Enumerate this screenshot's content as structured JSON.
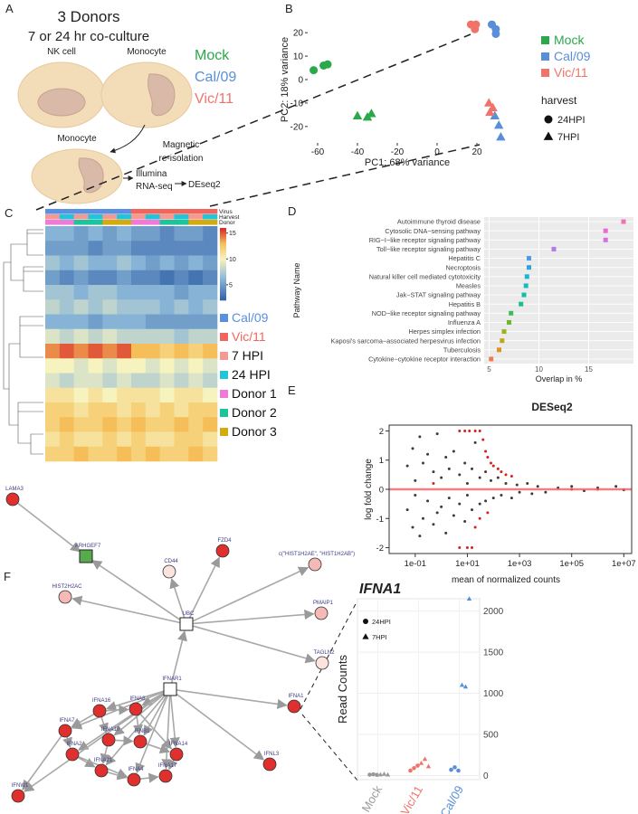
{
  "panel_labels": [
    "A",
    "B",
    "C",
    "D",
    "E",
    "F"
  ],
  "panel_a": {
    "title": "3 Donors",
    "subtitle": "7 or 24 hr co-culture",
    "cells": [
      "NK cell",
      "Monocyte",
      "Monocyte"
    ],
    "steps": [
      "Magnetic",
      "re-isolation",
      "Illumina",
      "RNA-seq",
      "DEseq2"
    ]
  },
  "chart_data": [
    {
      "type": "scatter",
      "xlabel": "PC1: 68% variance",
      "ylabel": "PC2: 18% variance",
      "xlim": [
        -65,
        35
      ],
      "ylim": [
        -27,
        27
      ],
      "xticks": [
        -60,
        -40,
        -20,
        0,
        20
      ],
      "yticks": [
        -20,
        -10,
        0,
        10,
        20
      ],
      "legend_title": "harvest",
      "harvest_levels": [
        "24HPI",
        "7HPI"
      ],
      "series": [
        {
          "name": "Mock",
          "color": "#2aa84a",
          "x": [
            -62,
            -57,
            -55,
            -40,
            -35,
            -33
          ],
          "y": [
            4,
            6,
            6.5,
            -15.5,
            -16,
            -14.5
          ],
          "harvest": [
            0,
            0,
            0,
            1,
            1,
            1
          ]
        },
        {
          "name": "Cal/09",
          "color": "#5a8fd8",
          "x": [
            27.5,
            29.5,
            29.5,
            29,
            31,
            32
          ],
          "y": [
            23.5,
            21.5,
            19.5,
            -15.5,
            -19.5,
            -24.5
          ],
          "harvest": [
            0,
            0,
            0,
            1,
            1,
            1
          ]
        },
        {
          "name": "Vic/11",
          "color": "#f0736a",
          "x": [
            17,
            19.5,
            19,
            26,
            28,
            26.5
          ],
          "y": [
            23.5,
            23.5,
            21.5,
            -10,
            -12,
            -14
          ],
          "harvest": [
            0,
            0,
            0,
            1,
            1,
            1
          ]
        }
      ]
    },
    {
      "type": "heatmap",
      "annotation_labels": [
        "Virus",
        "Harvest",
        "Donor"
      ],
      "annotations": [
        [
          0,
          0,
          0,
          0,
          0,
          0,
          1,
          1,
          1,
          1,
          1,
          1
        ],
        [
          2,
          3,
          2,
          3,
          2,
          3,
          2,
          3,
          2,
          3,
          2,
          3
        ],
        [
          4,
          4,
          5,
          5,
          6,
          6,
          4,
          4,
          5,
          5,
          6,
          6
        ]
      ],
      "legend": [
        {
          "label": "Cal/09",
          "color": "#5b8fe0",
          "text_color": "#5b8fe0"
        },
        {
          "label": "Vic/11",
          "color": "#f0665d",
          "text_color": "#f0665d"
        },
        {
          "label": "7 HPI",
          "color": "#f59a93"
        },
        {
          "label": "24 HPI",
          "color": "#22c4d8"
        },
        {
          "label": "Donor 1",
          "color": "#f07ad8"
        },
        {
          "label": "Donor 2",
          "color": "#1bc49a"
        },
        {
          "label": "Donor 3",
          "color": "#d4aa0c"
        }
      ],
      "clim": [
        2,
        16
      ],
      "cticks": [
        5,
        10,
        15
      ],
      "values": [
        [
          6,
          6,
          5,
          6,
          5,
          6,
          5,
          5,
          4,
          5,
          5,
          4
        ],
        [
          5,
          5,
          5,
          4,
          5,
          5,
          4,
          4,
          4,
          4,
          4,
          4
        ],
        [
          7,
          6,
          7,
          6,
          6,
          7,
          6,
          5,
          6,
          5,
          6,
          5
        ],
        [
          5,
          4,
          5,
          4,
          4,
          5,
          4,
          4,
          3,
          4,
          3,
          4
        ],
        [
          7,
          7,
          6,
          7,
          7,
          6,
          6,
          6,
          6,
          5,
          6,
          6
        ],
        [
          8,
          7,
          8,
          7,
          8,
          7,
          7,
          7,
          6,
          7,
          6,
          7
        ],
        [
          6,
          6,
          6,
          5,
          6,
          6,
          6,
          5,
          5,
          5,
          5,
          5
        ],
        [
          9,
          8,
          9,
          8,
          9,
          8,
          8,
          8,
          8,
          7,
          8,
          8
        ],
        [
          14,
          15,
          14,
          15,
          14,
          15,
          13,
          13,
          12,
          13,
          12,
          13
        ],
        [
          10,
          10,
          9,
          10,
          9,
          10,
          10,
          9,
          10,
          9,
          10,
          9
        ],
        [
          9,
          8,
          9,
          9,
          8,
          9,
          8,
          8,
          9,
          8,
          9,
          8
        ],
        [
          11,
          11,
          10,
          11,
          10,
          11,
          11,
          11,
          10,
          11,
          11,
          10
        ],
        [
          12,
          12,
          11,
          12,
          12,
          11,
          12,
          11,
          12,
          11,
          12,
          12
        ],
        [
          12,
          13,
          12,
          12,
          13,
          12,
          13,
          12,
          12,
          13,
          12,
          13
        ],
        [
          11,
          12,
          11,
          11,
          12,
          11,
          12,
          11,
          11,
          12,
          12,
          11
        ],
        [
          12,
          12,
          13,
          12,
          12,
          13,
          12,
          13,
          12,
          12,
          13,
          12
        ]
      ]
    },
    {
      "type": "dot",
      "xlabel": "Overlap in %",
      "ylabel": "Pathway Name",
      "xlim": [
        4.5,
        19.5
      ],
      "xticks": [
        5,
        10,
        15
      ],
      "grid": true,
      "categories": [
        "Autoimmune thyroid disease",
        "Cytosolic DNA−sensing pathway",
        "RIG−I−like receptor signaling pathway",
        "Toll−like receptor signaling pathway",
        "Hepatitis C",
        "Necroptosis",
        "Natural killer cell mediated cytotoxicity",
        "Measles",
        "Jak−STAT signaling pathway",
        "Hepatitis B",
        "NOD−like receptor signaling pathway",
        "Influenza A",
        "Herpes simplex infection",
        "Kaposi's sarcoma−associated herpesvirus infection",
        "Tuberculosis",
        "Cytokine−cytokine receptor interaction"
      ],
      "values": [
        18.5,
        16.7,
        16.7,
        11.5,
        9,
        9,
        8.8,
        8.7,
        8.5,
        8.2,
        7.2,
        7,
        6.5,
        6.3,
        6,
        5.2
      ],
      "colors": [
        "#f26fb8",
        "#e66bd6",
        "#d36ee6",
        "#b57ae8",
        "#4f9be6",
        "#2aa6e0",
        "#1db3d4",
        "#12bcc0",
        "#14bea4",
        "#1cbf86",
        "#3bbd57",
        "#6cb92e",
        "#9bb21a",
        "#c0a718",
        "#de951c",
        "#f27a4f"
      ]
    },
    {
      "type": "scatter",
      "title": "DESeq2",
      "xlabel": "mean of normalized counts",
      "ylabel": "log fold change",
      "log_x": true,
      "xlim": [
        0.01,
        20000000
      ],
      "ylim": [
        -2.2,
        2.2
      ],
      "xticks": [
        {
          "value": 0.1,
          "label": "1e-01"
        },
        {
          "value": 10,
          "label": "1e+01"
        },
        {
          "value": 1000,
          "label": "1e+03"
        },
        {
          "value": 100000,
          "label": "1e+05"
        },
        {
          "value": 10000000,
          "label": "1e+07"
        }
      ],
      "yticks": [
        -2,
        -1,
        0,
        1,
        2
      ],
      "hline": 0,
      "hline_color": "#f06060",
      "series": [
        {
          "color": "#3c3c3c",
          "x": [
            0.05,
            0.05,
            0.08,
            0.08,
            0.1,
            0.1,
            0.15,
            0.15,
            0.2,
            0.2,
            0.3,
            0.3,
            0.5,
            0.5,
            0.7,
            0.7,
            1,
            1,
            1.5,
            1.5,
            2,
            2,
            3,
            3,
            5,
            5,
            8,
            8,
            10,
            10,
            15,
            15,
            20,
            30,
            30,
            50,
            50,
            80,
            100,
            150,
            200,
            300,
            500,
            800,
            1000,
            2000,
            3000,
            5000,
            10000,
            30000,
            100000,
            300000,
            1000000,
            5000000,
            10000000
          ],
          "y": [
            0.8,
            -0.7,
            1.4,
            -1.3,
            0.3,
            -0.2,
            1.8,
            -1.6,
            0.9,
            -1.0,
            1.2,
            -0.4,
            0.6,
            -1.2,
            1.9,
            -0.8,
            0.4,
            -0.6,
            1.1,
            -1.5,
            0.7,
            -0.3,
            1.3,
            -0.9,
            0.5,
            -0.5,
            0.9,
            -1.1,
            0.2,
            -0.2,
            0.7,
            -0.7,
            1.6,
            0.4,
            -0.5,
            0.6,
            -0.4,
            0.3,
            -0.3,
            0.4,
            -0.2,
            0.2,
            -0.3,
            0.15,
            -0.1,
            0.2,
            -0.15,
            0.1,
            -0.1,
            0.05,
            0.1,
            -0.05,
            0.05,
            0.1,
            -0.02
          ]
        },
        {
          "color": "#d62020",
          "x": [
            5,
            8,
            12,
            20,
            30,
            40,
            50,
            60,
            80,
            100,
            150,
            200,
            300,
            500,
            20,
            30,
            60,
            5,
            10,
            15,
            0.5,
            100000,
            1000000
          ],
          "y": [
            2,
            2,
            2,
            2,
            2,
            1.7,
            1.3,
            1.1,
            0.9,
            0.8,
            0.7,
            0.6,
            0.5,
            0.45,
            -1.3,
            -1.0,
            -0.8,
            -2,
            -2,
            -2,
            0.2,
            0,
            0
          ]
        }
      ]
    },
    {
      "type": "strip",
      "title": "IFNA1",
      "ylabel": "Read Counts",
      "categories": [
        "Mock",
        "Vic/11",
        "Cal/09"
      ],
      "category_colors": [
        "#9a9a9a",
        "#f0736a",
        "#5a8fd8"
      ],
      "ylim": [
        -50,
        2150
      ],
      "yticks": [
        0,
        500,
        1000,
        1500,
        2000
      ],
      "grid": true,
      "series": [
        {
          "name": "24HPI",
          "values": [
            [
              10,
              14,
              8
            ],
            [
              60,
              90,
              120
            ],
            [
              70,
              100,
              60
            ]
          ]
        },
        {
          "name": "7HPI",
          "values": [
            [
              12,
              18,
              10
            ],
            [
              150,
              200,
              110
            ],
            [
              1100,
              1080,
              2150
            ]
          ]
        }
      ]
    }
  ],
  "network": {
    "nodes": [
      {
        "label": "LAMA3",
        "color": "#e0302e",
        "shape": "circle"
      },
      {
        "label": "ARHGEF7",
        "color": "#58ab4c",
        "shape": "square"
      },
      {
        "label": "CD44",
        "color": "#fce3de",
        "shape": "circle"
      },
      {
        "label": "FZD4",
        "color": "#e0302e",
        "shape": "circle"
      },
      {
        "label": "c(\"HIST1H2AE\", \"HIST1H2AB\")",
        "color": "#f5b9b6",
        "shape": "circle"
      },
      {
        "label": "HIST2H2AC",
        "color": "#f5b9b6",
        "shape": "circle"
      },
      {
        "label": "PMAIP1",
        "color": "#f5b9b6",
        "shape": "circle"
      },
      {
        "label": "UBC",
        "color": "#ffffff",
        "shape": "square"
      },
      {
        "label": "TAGLN2",
        "color": "#fce3de",
        "shape": "circle"
      },
      {
        "label": "IFNAR1",
        "color": "#ffffff",
        "shape": "square"
      },
      {
        "label": "IFNA16",
        "color": "#e0302e",
        "shape": "circle"
      },
      {
        "label": "IFNA8",
        "color": "#e0302e",
        "shape": "circle"
      },
      {
        "label": "IFNA7",
        "color": "#e0302e",
        "shape": "circle"
      },
      {
        "label": "IFNA10",
        "color": "#e0302e",
        "shape": "circle"
      },
      {
        "label": "IFNA2",
        "color": "#e0302e",
        "shape": "circle"
      },
      {
        "label": "IFNB1",
        "color": "#e0302e",
        "shape": "circle"
      },
      {
        "label": "IFNA14",
        "color": "#e0302e",
        "shape": "circle"
      },
      {
        "label": "IFNA21",
        "color": "#e0302e",
        "shape": "circle"
      },
      {
        "label": "IFNA4",
        "color": "#e0302e",
        "shape": "circle"
      },
      {
        "label": "IFNA17",
        "color": "#e0302e",
        "shape": "circle"
      },
      {
        "label": "IFNW1",
        "color": "#e0302e",
        "shape": "circle"
      },
      {
        "label": "IFNA1",
        "color": "#e0302e",
        "shape": "circle"
      },
      {
        "label": "IFNL3",
        "color": "#e0302e",
        "shape": "circle"
      }
    ],
    "edges": [
      [
        0,
        1
      ],
      [
        7,
        1
      ],
      [
        7,
        2
      ],
      [
        7,
        3
      ],
      [
        7,
        4
      ],
      [
        7,
        5
      ],
      [
        7,
        6
      ],
      [
        7,
        8
      ],
      [
        9,
        7
      ],
      [
        9,
        21
      ],
      [
        9,
        22
      ],
      [
        9,
        10
      ],
      [
        9,
        11
      ],
      [
        9,
        12
      ],
      [
        9,
        13
      ],
      [
        9,
        14
      ],
      [
        9,
        15
      ],
      [
        9,
        16
      ],
      [
        9,
        17
      ],
      [
        9,
        18
      ],
      [
        9,
        19
      ],
      [
        9,
        20
      ],
      [
        10,
        12
      ],
      [
        10,
        13
      ],
      [
        11,
        15
      ],
      [
        12,
        14
      ],
      [
        13,
        17
      ],
      [
        14,
        17
      ],
      [
        15,
        16
      ],
      [
        16,
        19
      ],
      [
        17,
        18
      ],
      [
        18,
        19
      ],
      [
        12,
        20
      ],
      [
        10,
        11
      ],
      [
        13,
        15
      ],
      [
        14,
        18
      ],
      [
        11,
        16
      ]
    ]
  }
}
